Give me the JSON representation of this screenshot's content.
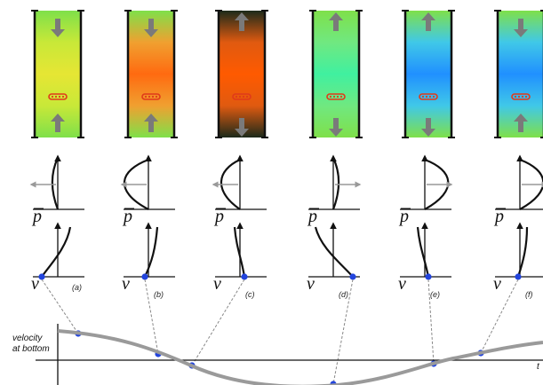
{
  "panels": [
    {
      "id": "a",
      "label": "(a)",
      "gradient": [
        "#7fe04a",
        "#c8e838",
        "#e6e634",
        "#c8e838",
        "#7fe04a"
      ],
      "top_arrow": "down",
      "bottom_arrow": "up",
      "p_dir": "left",
      "p_curve": "small-left",
      "v_curve": "s-right",
      "show_label": false
    },
    {
      "id": "b",
      "label": "(b)",
      "gradient": [
        "#7fe04a",
        "#f0a030",
        "#ff6a10",
        "#f0a030",
        "#7fe04a"
      ],
      "top_arrow": "down",
      "bottom_arrow": "up",
      "p_dir": "left",
      "p_curve": "big-left",
      "v_curve": "hook-right",
      "show_label": true
    },
    {
      "id": "c",
      "label": "(c)",
      "gradient": [
        "#1c2a1a",
        "#e05a10",
        "#ff5a00",
        "#e05a10",
        "#1c2a1a"
      ],
      "top_arrow": "up",
      "bottom_arrow": "down",
      "p_dir": "left",
      "p_curve": "medium-left",
      "v_curve": "hook-left",
      "show_label": true
    },
    {
      "id": "d",
      "label": "(d)",
      "gradient": [
        "#7fe04a",
        "#70e880",
        "#40f0a0",
        "#70e880",
        "#7fe04a"
      ],
      "top_arrow": "up",
      "bottom_arrow": "down",
      "p_dir": "right",
      "p_curve": "small-right",
      "v_curve": "s-left",
      "show_label": true
    },
    {
      "id": "e",
      "label": "(e)",
      "gradient": [
        "#7fe04a",
        "#40c8e8",
        "#2090ff",
        "#40c8e8",
        "#7fe04a"
      ],
      "top_arrow": "up",
      "bottom_arrow": "down",
      "p_dir": "right",
      "p_curve": "big-right",
      "v_curve": "hook-left2",
      "show_label": true
    },
    {
      "id": "f",
      "label": "(f)",
      "gradient": [
        "#7fe04a",
        "#40c8e8",
        "#2090ff",
        "#40c8e8",
        "#7fe04a"
      ],
      "top_arrow": "down",
      "bottom_arrow": "up",
      "p_dir": "right",
      "p_curve": "big-right",
      "v_curve": "hook-right2",
      "show_label": true
    }
  ],
  "p_label": "p",
  "v_label": "v",
  "graph": {
    "ylabel_line1": "velocity",
    "ylabel_line2": "at bottom",
    "xlabel": "t"
  },
  "colors": {
    "arrow": "#7a7a7a",
    "dot": "#2244dd",
    "heater": "#e03a1a",
    "curve": "#9a9a9a"
  }
}
